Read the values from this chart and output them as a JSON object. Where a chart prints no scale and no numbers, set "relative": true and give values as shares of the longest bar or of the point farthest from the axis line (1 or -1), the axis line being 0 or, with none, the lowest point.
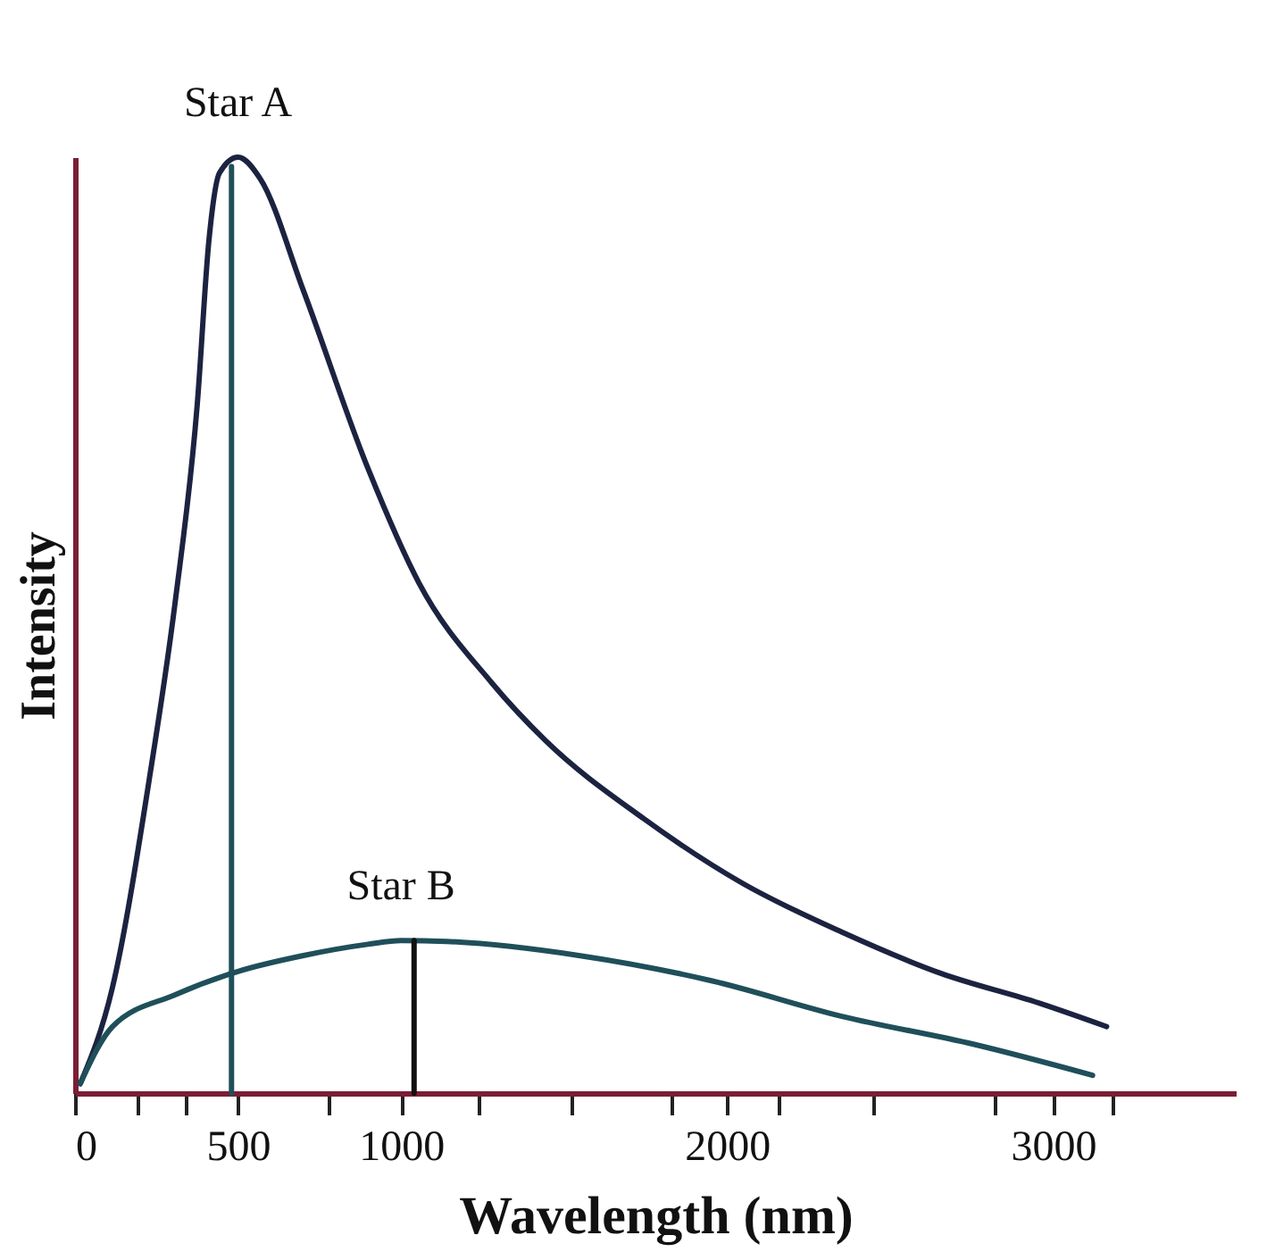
{
  "chart_data": {
    "type": "line",
    "relative": true,
    "xlabel": "Wavelength (nm)",
    "ylabel": "Intensity",
    "xlim": [
      0,
      3560
    ],
    "xticks": [
      0,
      {
        "value": 190,
        "label": null
      },
      {
        "value": 340,
        "label": null
      },
      500,
      {
        "value": 780,
        "label": null
      },
      1000,
      {
        "value": 1240,
        "label": null
      },
      {
        "value": 1520,
        "label": null
      },
      {
        "value": 1830,
        "label": null
      },
      2000,
      {
        "value": 2160,
        "label": null
      },
      {
        "value": 2450,
        "label": null
      },
      {
        "value": 2820,
        "label": null
      },
      3000,
      {
        "value": 3180,
        "label": null
      }
    ],
    "tick_labels": "x",
    "grid": false,
    "marker": "none",
    "line_style": "solid",
    "series": [
      {
        "name": "Star A",
        "color": "#1c2340",
        "x": [
          16,
          115,
          229,
          307,
          375,
          411,
          443,
          500,
          568,
          701,
          899,
          1055,
          1279,
          1442,
          1745,
          2048,
          2352,
          2655,
          2958,
          3164
        ],
        "values": [
          0.01,
          0.113,
          0.338,
          0.524,
          0.736,
          0.912,
          0.983,
          1.0,
          0.977,
          0.857,
          0.667,
          0.545,
          0.438,
          0.377,
          0.293,
          0.224,
          0.172,
          0.128,
          0.096,
          0.071
        ]
      },
      {
        "name": "Star B",
        "color": "#1f4f5a",
        "x": [
          16,
          115,
          307,
          500,
          701,
          899,
          1000,
          1139,
          1545,
          1952,
          2352,
          2758,
          3121
        ],
        "values": [
          0.01,
          0.071,
          0.105,
          0.13,
          0.147,
          0.159,
          0.163,
          0.162,
          0.147,
          0.12,
          0.082,
          0.052,
          0.019
        ]
      },
      {
        "type": "line",
        "color": "#1f4f5a",
        "x": [
          480,
          480
        ],
        "values": [
          0,
          0.99
        ]
      },
      {
        "type": "line",
        "color": "#111111",
        "x": [
          1040,
          1040
        ],
        "values": [
          0,
          0.163
        ]
      }
    ]
  }
}
